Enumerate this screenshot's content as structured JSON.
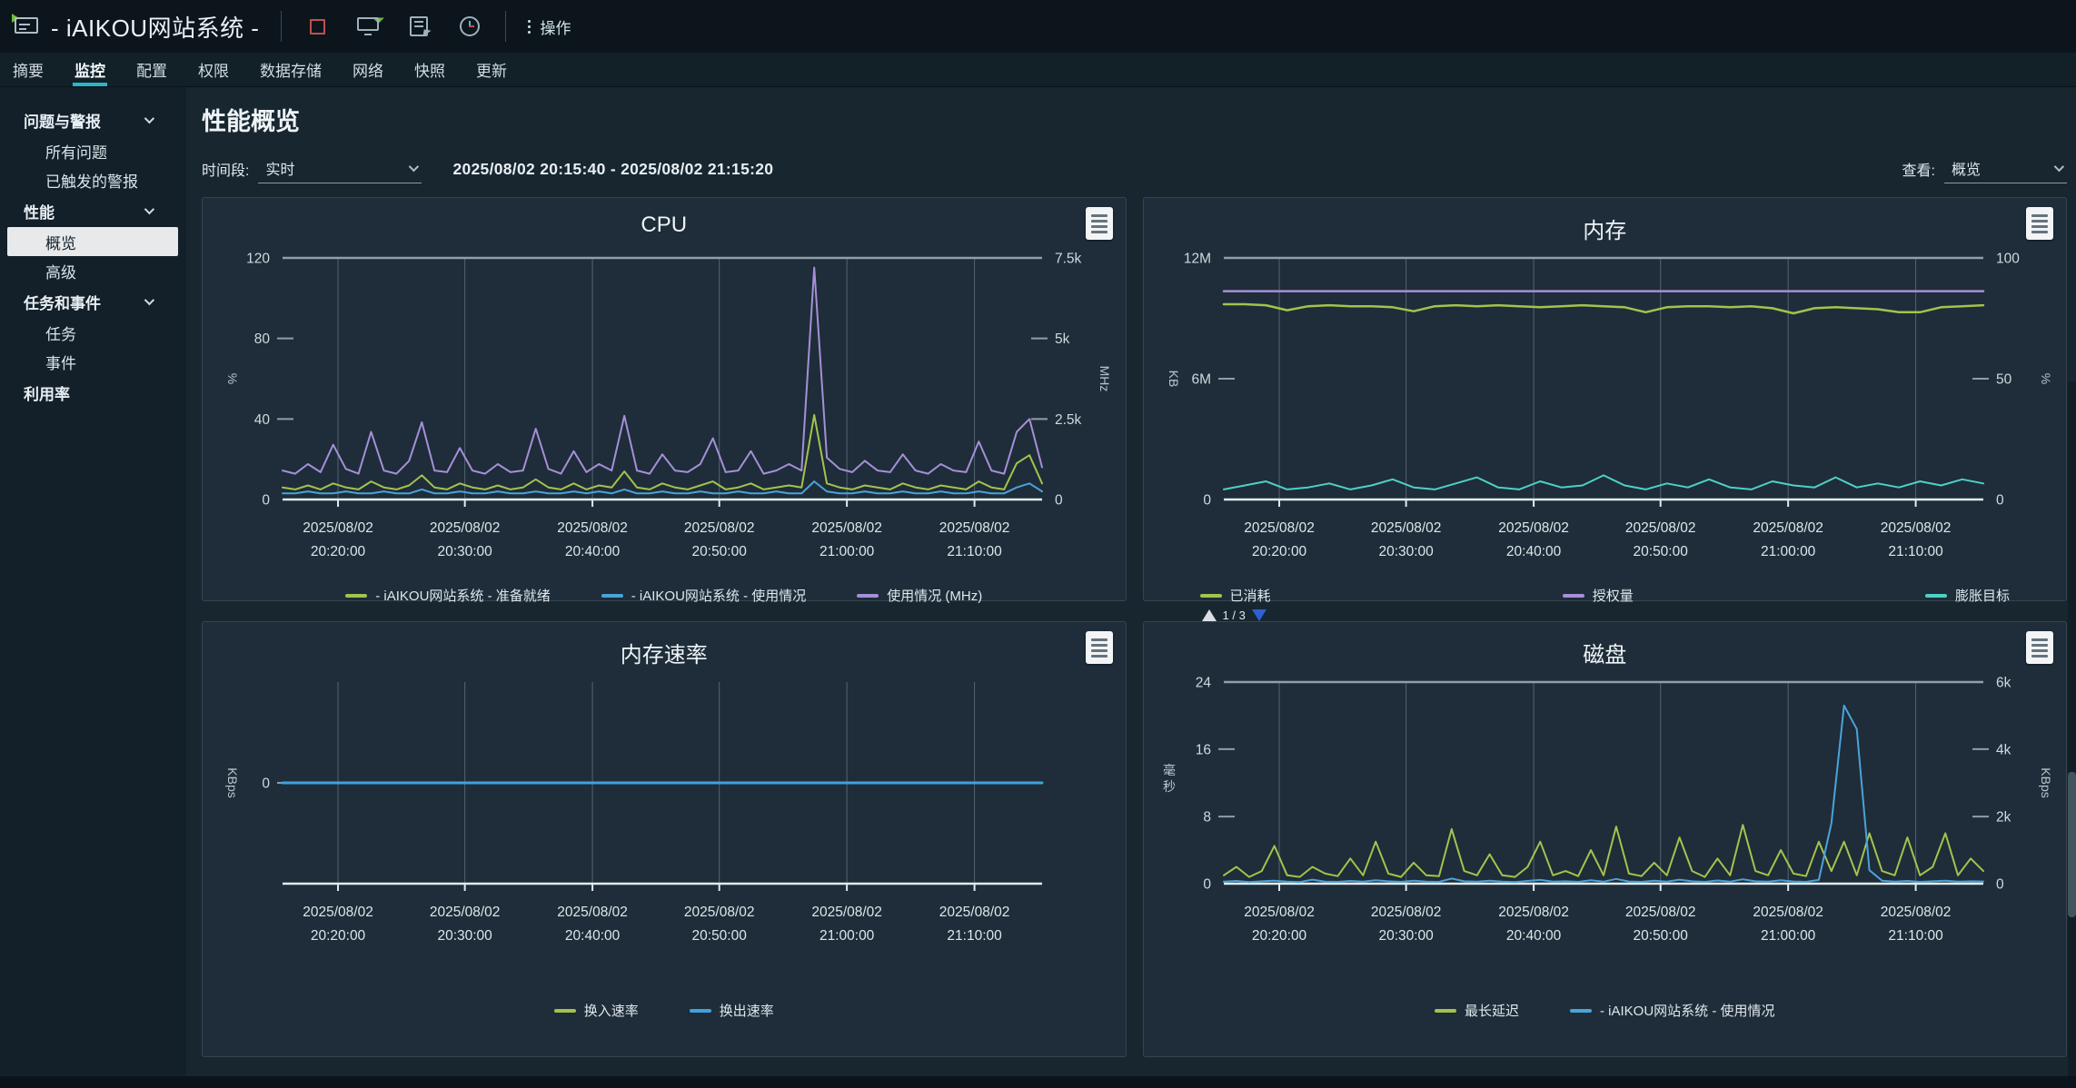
{
  "window": {
    "title": "- iAIKOU网站系统 -",
    "actions_label": "操作"
  },
  "toolbar_icons": [
    {
      "name": "shutdown-icon"
    },
    {
      "name": "launch-console-icon"
    },
    {
      "name": "export-icon"
    },
    {
      "name": "schedule-icon"
    }
  ],
  "tabs": [
    {
      "id": "summary",
      "label": "摘要",
      "active": false
    },
    {
      "id": "monitor",
      "label": "监控",
      "active": true
    },
    {
      "id": "configure",
      "label": "配置",
      "active": false
    },
    {
      "id": "permissions",
      "label": "权限",
      "active": false
    },
    {
      "id": "datastores",
      "label": "数据存储",
      "active": false
    },
    {
      "id": "networks",
      "label": "网络",
      "active": false
    },
    {
      "id": "snapshots",
      "label": "快照",
      "active": false
    },
    {
      "id": "updates",
      "label": "更新",
      "active": false
    }
  ],
  "sidebar": [
    {
      "id": "issues-alarms",
      "label": "问题与警报",
      "expandable": true,
      "items": [
        {
          "id": "all-issues",
          "label": "所有问题",
          "selected": false
        },
        {
          "id": "triggered-alarms",
          "label": "已触发的警报",
          "selected": false
        }
      ]
    },
    {
      "id": "performance",
      "label": "性能",
      "expandable": true,
      "items": [
        {
          "id": "overview",
          "label": "概览",
          "selected": true
        },
        {
          "id": "advanced",
          "label": "高级",
          "selected": false
        }
      ]
    },
    {
      "id": "tasks-events",
      "label": "任务和事件",
      "expandable": true,
      "items": [
        {
          "id": "tasks",
          "label": "任务",
          "selected": false
        },
        {
          "id": "events",
          "label": "事件",
          "selected": false
        }
      ]
    },
    {
      "id": "utilization",
      "label": "利用率",
      "expandable": false,
      "items": []
    }
  ],
  "header": {
    "page_title": "性能概览",
    "time_label": "时间段:",
    "time_value": "实时",
    "time_range": "2025/08/02 20:15:40 - 2025/08/02 21:15:20",
    "view_label": "查看:",
    "view_value": "概览"
  },
  "colors": {
    "accent": "#2db4c8",
    "series_green": "#a5c24d",
    "series_blue": "#4aa3d9",
    "series_purple": "#a68fd8",
    "series_teal": "#4fd0c7"
  },
  "chart_data": [
    {
      "id": "cpu",
      "type": "line",
      "title": "CPU",
      "top_line": true,
      "left_axis": {
        "unit": "%",
        "range": [
          0,
          120
        ],
        "ticks": [
          {
            "label": "120",
            "pos": 0
          },
          {
            "label": "80",
            "pos": 0.333
          },
          {
            "label": "40",
            "pos": 0.667
          },
          {
            "label": "0",
            "pos": 1
          }
        ]
      },
      "right_axis": {
        "unit": "MHz",
        "range": [
          0,
          7500
        ],
        "ticks": [
          {
            "label": "7.5k",
            "pos": 0
          },
          {
            "label": "5k",
            "pos": 0.333
          },
          {
            "label": "2.5k",
            "pos": 0.667
          },
          {
            "label": "0",
            "pos": 1
          }
        ]
      },
      "x_ticks": [
        {
          "date": "2025/08/02",
          "time": "20:20:00"
        },
        {
          "date": "2025/08/02",
          "time": "20:30:00"
        },
        {
          "date": "2025/08/02",
          "time": "20:40:00"
        },
        {
          "date": "2025/08/02",
          "time": "20:50:00"
        },
        {
          "date": "2025/08/02",
          "time": "21:00:00"
        },
        {
          "date": "2025/08/02",
          "time": "21:10:00"
        }
      ],
      "series": [
        {
          "name": "- iAIKOU网站系统 - 准备就绪",
          "color": "#a5c24d",
          "axis": "left",
          "width": 2,
          "values": [
            6,
            5,
            7,
            5,
            8,
            6,
            5,
            9,
            6,
            5,
            7,
            12,
            6,
            5,
            8,
            6,
            5,
            7,
            5,
            6,
            10,
            6,
            5,
            8,
            5,
            7,
            6,
            14,
            6,
            5,
            8,
            6,
            5,
            7,
            9,
            5,
            6,
            8,
            5,
            6,
            7,
            6,
            42,
            8,
            6,
            5,
            7,
            6,
            5,
            8,
            6,
            5,
            7,
            6,
            5,
            9,
            6,
            5,
            18,
            22,
            8
          ]
        },
        {
          "name": "- iAIKOU网站系统 - 使用情况",
          "color": "#4aa3d9",
          "axis": "left",
          "width": 2,
          "values": [
            3,
            3,
            4,
            3,
            3,
            4,
            3,
            3,
            4,
            3,
            3,
            5,
            3,
            3,
            4,
            3,
            3,
            4,
            3,
            3,
            4,
            3,
            3,
            4,
            3,
            4,
            3,
            5,
            3,
            3,
            4,
            3,
            3,
            4,
            3,
            3,
            4,
            3,
            3,
            4,
            3,
            3,
            9,
            4,
            3,
            3,
            4,
            3,
            3,
            4,
            3,
            3,
            4,
            3,
            3,
            4,
            3,
            3,
            6,
            8,
            4
          ]
        },
        {
          "name": "使用情况 (MHz)",
          "color": "#a68fd8",
          "axis": "right",
          "width": 2,
          "values": [
            900,
            800,
            1100,
            850,
            1700,
            950,
            800,
            2100,
            900,
            800,
            1200,
            2400,
            900,
            850,
            1600,
            900,
            800,
            1100,
            850,
            900,
            2200,
            950,
            800,
            1500,
            850,
            1100,
            900,
            2600,
            900,
            800,
            1400,
            900,
            850,
            1100,
            1900,
            850,
            900,
            1500,
            800,
            900,
            1100,
            900,
            7200,
            1300,
            950,
            850,
            1200,
            900,
            850,
            1400,
            900,
            800,
            1100,
            900,
            850,
            1800,
            900,
            800,
            2100,
            2500,
            1000
          ]
        }
      ]
    },
    {
      "id": "memory",
      "type": "line",
      "title": "内存",
      "top_line": true,
      "legend_spread": true,
      "pager": "1 / 3",
      "left_axis": {
        "unit": "KB",
        "range": [
          0,
          12
        ],
        "ticks": [
          {
            "label": "12M",
            "pos": 0
          },
          {
            "label": "6M",
            "pos": 0.5
          },
          {
            "label": "0",
            "pos": 1
          }
        ]
      },
      "right_axis": {
        "unit": "%",
        "range": [
          0,
          100
        ],
        "ticks": [
          {
            "label": "100",
            "pos": 0
          },
          {
            "label": "50",
            "pos": 0.5
          },
          {
            "label": "0",
            "pos": 1
          }
        ]
      },
      "x_ticks": [
        {
          "date": "2025/08/02",
          "time": "20:20:00"
        },
        {
          "date": "2025/08/02",
          "time": "20:30:00"
        },
        {
          "date": "2025/08/02",
          "time": "20:40:00"
        },
        {
          "date": "2025/08/02",
          "time": "20:50:00"
        },
        {
          "date": "2025/08/02",
          "time": "21:00:00"
        },
        {
          "date": "2025/08/02",
          "time": "21:10:00"
        }
      ],
      "series": [
        {
          "name": "已消耗",
          "color": "#a5c24d",
          "axis": "left",
          "width": 2.5,
          "values": [
            9.7,
            9.7,
            9.65,
            9.4,
            9.6,
            9.65,
            9.6,
            9.6,
            9.55,
            9.35,
            9.6,
            9.65,
            9.6,
            9.65,
            9.6,
            9.55,
            9.6,
            9.65,
            9.6,
            9.55,
            9.3,
            9.55,
            9.6,
            9.6,
            9.55,
            9.6,
            9.5,
            9.25,
            9.5,
            9.55,
            9.5,
            9.45,
            9.3,
            9.3,
            9.55,
            9.6,
            9.65
          ]
        },
        {
          "name": "授权量",
          "color": "#a68fd8",
          "axis": "left",
          "width": 2.5,
          "values": [
            10.35,
            10.35
          ]
        },
        {
          "name": "膨胀目标",
          "color": "#4fd0c7",
          "axis": "left",
          "width": 2,
          "values": [
            0.5,
            0.7,
            0.9,
            0.5,
            0.6,
            0.8,
            0.5,
            0.7,
            1.0,
            0.6,
            0.5,
            0.8,
            1.1,
            0.6,
            0.5,
            0.9,
            0.6,
            0.7,
            1.2,
            0.7,
            0.5,
            0.8,
            0.6,
            1.0,
            0.6,
            0.5,
            0.9,
            0.7,
            0.6,
            1.1,
            0.6,
            0.8,
            0.6,
            0.9,
            0.7,
            1.0,
            0.8
          ]
        }
      ]
    },
    {
      "id": "memory-rate",
      "type": "line",
      "title": "内存速率",
      "top_line": false,
      "left_axis": {
        "unit": "KBps",
        "range": [
          -1,
          1
        ],
        "ticks": [
          {
            "label": "0",
            "pos": 0.5
          }
        ]
      },
      "right_axis": null,
      "x_ticks": [
        {
          "date": "2025/08/02",
          "time": "20:20:00"
        },
        {
          "date": "2025/08/02",
          "time": "20:30:00"
        },
        {
          "date": "2025/08/02",
          "time": "20:40:00"
        },
        {
          "date": "2025/08/02",
          "time": "20:50:00"
        },
        {
          "date": "2025/08/02",
          "time": "21:00:00"
        },
        {
          "date": "2025/08/02",
          "time": "21:10:00"
        }
      ],
      "series": [
        {
          "name": "换入速率",
          "color": "#a5c24d",
          "axis": "left",
          "width": 2,
          "values": [
            0,
            0
          ]
        },
        {
          "name": "换出速率",
          "color": "#3fa2dc",
          "axis": "left",
          "width": 3,
          "values": [
            0,
            0
          ]
        }
      ]
    },
    {
      "id": "disk",
      "type": "line",
      "title": "磁盘",
      "top_line": true,
      "left_axis": {
        "unit": "毫秒",
        "range": [
          0,
          24
        ],
        "ticks": [
          {
            "label": "24",
            "pos": 0
          },
          {
            "label": "16",
            "pos": 0.333
          },
          {
            "label": "8",
            "pos": 0.667
          },
          {
            "label": "0",
            "pos": 1
          }
        ]
      },
      "right_axis": {
        "unit": "KBps",
        "range": [
          0,
          6000
        ],
        "ticks": [
          {
            "label": "6k",
            "pos": 0
          },
          {
            "label": "4k",
            "pos": 0.333
          },
          {
            "label": "2k",
            "pos": 0.667
          },
          {
            "label": "0",
            "pos": 1
          }
        ]
      },
      "x_ticks": [
        {
          "date": "2025/08/02",
          "time": "20:20:00"
        },
        {
          "date": "2025/08/02",
          "time": "20:30:00"
        },
        {
          "date": "2025/08/02",
          "time": "20:40:00"
        },
        {
          "date": "2025/08/02",
          "time": "20:50:00"
        },
        {
          "date": "2025/08/02",
          "time": "21:00:00"
        },
        {
          "date": "2025/08/02",
          "time": "21:10:00"
        }
      ],
      "series": [
        {
          "name": "最长延迟",
          "color": "#a5c24d",
          "axis": "left",
          "width": 2,
          "values": [
            1,
            2,
            0.8,
            1.5,
            4.5,
            1,
            0.8,
            2,
            1.2,
            0.9,
            3,
            1,
            5,
            1.2,
            0.8,
            2.5,
            1,
            0.9,
            6.5,
            1.5,
            1,
            3.5,
            1,
            0.8,
            2,
            5,
            1,
            1.5,
            0.9,
            4,
            1,
            6.8,
            1.2,
            0.9,
            2.5,
            1,
            5.5,
            1.5,
            0.8,
            3,
            1,
            7,
            1.5,
            1,
            4,
            1.2,
            0.9,
            5,
            1.5,
            5,
            1,
            6,
            1.5,
            1,
            5.5,
            1,
            2,
            6,
            1,
            3,
            1.5
          ]
        },
        {
          "name": "- iAIKOU网站系统 - 使用情况",
          "color": "#4aa3d9",
          "axis": "right",
          "width": 2,
          "values": [
            60,
            80,
            50,
            70,
            90,
            60,
            50,
            120,
            60,
            55,
            80,
            60,
            100,
            70,
            55,
            90,
            60,
            55,
            150,
            70,
            60,
            90,
            60,
            50,
            80,
            110,
            60,
            70,
            55,
            100,
            60,
            140,
            65,
            55,
            90,
            60,
            120,
            70,
            55,
            95,
            60,
            130,
            70,
            60,
            100,
            65,
            55,
            110,
            1800,
            5300,
            4600,
            400,
            90,
            60,
            80,
            55,
            70,
            90,
            60,
            70,
            65
          ]
        }
      ]
    }
  ]
}
